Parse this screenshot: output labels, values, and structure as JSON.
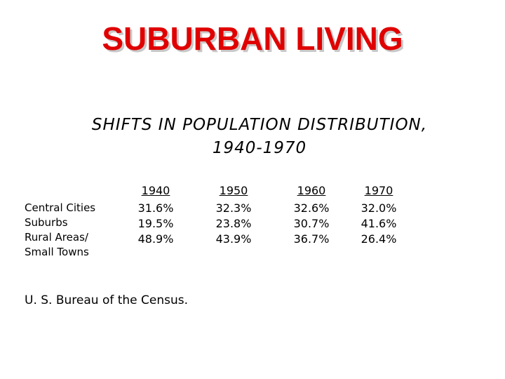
{
  "header": {
    "title": "SUBURBAN LIVING",
    "subtitle": [
      "SHIFTS IN POPULATION DISTRIBUTION,",
      "1940-1970"
    ]
  },
  "table": {
    "columns": [
      "1940",
      "1950",
      "1960",
      "1970"
    ],
    "rows": [
      {
        "label": [
          "Central Cities"
        ],
        "cells": [
          "31.6%",
          "32.3%",
          "32.6%",
          "32.0%"
        ]
      },
      {
        "label": [
          "Suburbs"
        ],
        "cells": [
          "19.5%",
          "23.8%",
          "30.7%",
          "41.6%"
        ]
      },
      {
        "label": [
          "Rural Areas/",
          "Small Towns"
        ],
        "cells": [
          "48.9%",
          "43.9%",
          "36.7%",
          "26.4%"
        ]
      }
    ]
  },
  "source": "U. S. Bureau of the Census."
}
